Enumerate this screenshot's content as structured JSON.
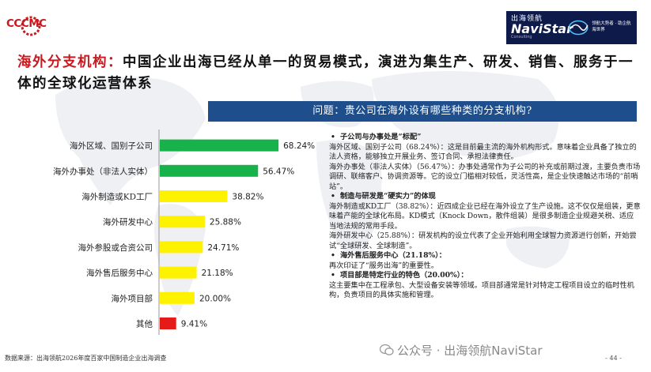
{
  "header": {
    "left_logo": "CCCMC",
    "right_logo": {
      "cn": "出海领航",
      "en": "NaviStar",
      "sub": "Consulting",
      "tagline_1": "领航大势者 · 助企航海世界"
    }
  },
  "title": {
    "accent": "海外分支机构：",
    "text": "中国企业出海已经从单一的贸易模式，演进为集生产、研发、销售、服务于一体的全球化运营体系"
  },
  "question": "问题：贵公司在海外设有哪些种类的分支机构?",
  "colors": {
    "green": "#17b34a",
    "yellow": "#fff200",
    "red": "#e41b17",
    "navy": "#1f4e8c"
  },
  "chart_data": {
    "type": "bar",
    "orientation": "horizontal",
    "categories": [
      "海外区域、国别子公司",
      "海外办事处（非法人实体）",
      "海外制造或KD工厂",
      "海外研发中心",
      "海外参股或合资公司",
      "海外售后服务中心",
      "海外项目部",
      "其他"
    ],
    "values": [
      68.24,
      56.47,
      38.82,
      25.88,
      24.71,
      21.18,
      20.0,
      9.41
    ],
    "value_labels": [
      "68.24%",
      "56.47%",
      "38.82%",
      "25.88%",
      "24.71%",
      "21.18%",
      "20.00%",
      "9.41%"
    ],
    "bar_colors": [
      "#17b34a",
      "#17b34a",
      "#fff200",
      "#fff200",
      "#fff200",
      "#fff200",
      "#fff200",
      "#e41b17"
    ],
    "xlim": [
      0,
      100
    ]
  },
  "right_text": {
    "h1": "子公司与办事处是“标配”",
    "p1": "海外区域、国别子公司（68.24%）：这是目前最主流的海外机构形式。意味着企业具备了独立的法人资格，能够独立开展业务、签订合同、承担法律责任。",
    "p2": "海外办事处（非法人实体）（56.47%）：办事处通常作为子公司的补充或前期过渡，主要负责市场调研、联络客户、协调资源等。它的设立门槛相对较低，灵活性高，是企业快速触达市场的“前哨站”。",
    "h2": "制造与研发是“硬实力”的体现",
    "p3": "海外制造或KD工厂（38.82%）：近四成企业已经在海外设立了生产设施。这不仅仅是组装，更意味着产能的全球化布局。KD模式（Knock Down，散件组装）是很多制造企业规避关税、适应当地法规的常用手段。",
    "p4": "海外研发中心（25.88%）：研发机构的设立代表了企业开始利用全球智力资源进行创新，开始尝试“全球研发、全球制造”。",
    "h3": "海外售后服务中心（21.18%）：",
    "p5": "再次印证了“服务出海”的重要性。",
    "h4": "项目部是特定行业的特色（20.00%）：",
    "p6": "这主要集中在工程承包、大型设备安装等领域。项目部通常是针对特定工程项目设立的临时性机构，负责项目的具体实施和管理。"
  },
  "footer": {
    "source": "数据来源：出海领航2026年度百家中国制造企业出海调查",
    "watermark": "公众号 · 出海领航NaviStar",
    "page": "- 44 -"
  }
}
